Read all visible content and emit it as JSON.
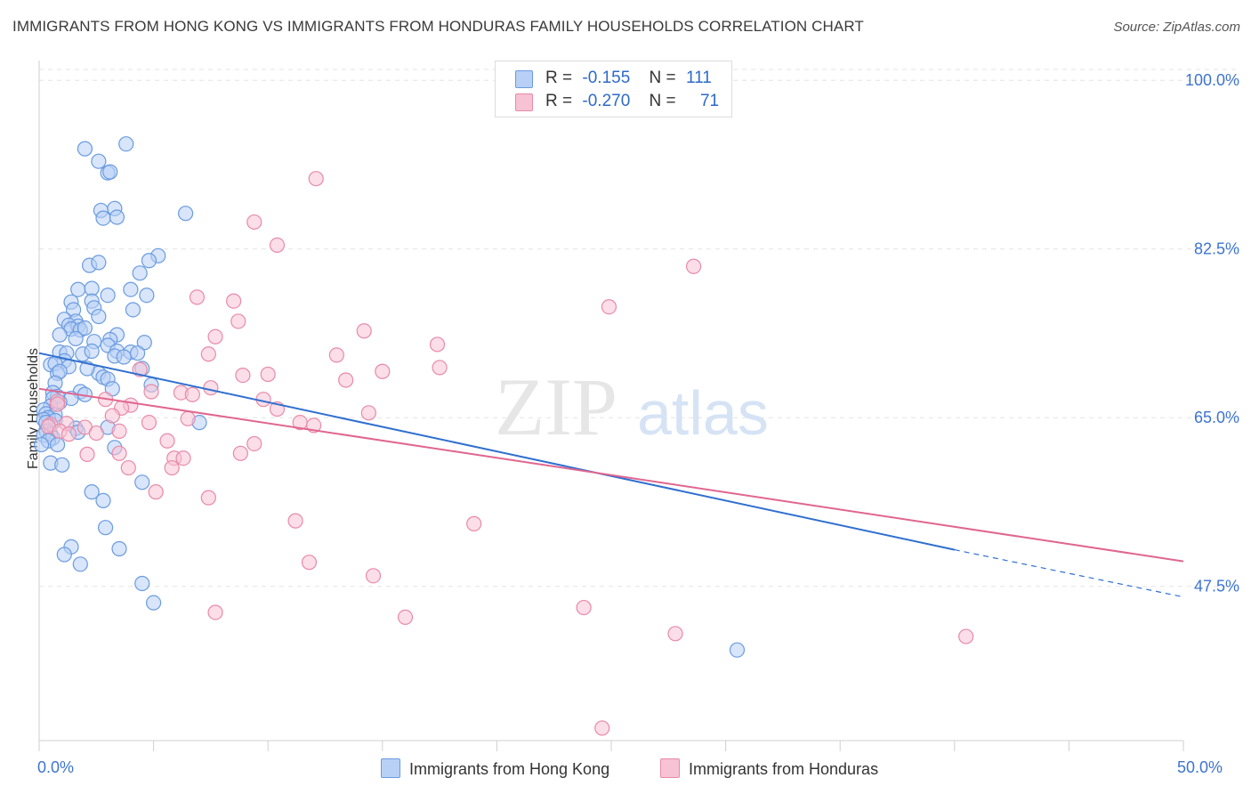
{
  "title": "IMMIGRANTS FROM HONG KONG VS IMMIGRANTS FROM HONDURAS FAMILY HOUSEHOLDS CORRELATION CHART",
  "source": "Source: ZipAtlas.com",
  "watermark": {
    "zip": "ZIP",
    "atlas": "atlas"
  },
  "legend": {
    "rows": [
      {
        "r_label": "R =",
        "r_value": "-0.155",
        "n_label": "N =",
        "n_value": "111"
      },
      {
        "r_label": "R =",
        "r_value": "-0.270",
        "n_label": "N =",
        "n_value": "71"
      }
    ]
  },
  "colors": {
    "blue_fill": "#b8d0f5",
    "blue_stroke": "#6a9be0",
    "blue_line": "#2f6fd0",
    "pink_fill": "#f7c2d3",
    "pink_stroke": "#e88aa8",
    "pink_line": "#e0668f",
    "axis_text": "#3d74cf",
    "grid": "#e3e3e3"
  },
  "chart_data": {
    "type": "scatter",
    "title": "IMMIGRANTS FROM HONG KONG VS IMMIGRANTS FROM HONDURAS FAMILY HOUSEHOLDS CORRELATION CHART",
    "xlabel": "",
    "ylabel": "Family Households",
    "xlim": [
      0,
      50
    ],
    "ylim": [
      31.5,
      101.5
    ],
    "x_tick_labels": [
      "0.0%",
      "50.0%"
    ],
    "y_ticks": [
      100.0,
      82.5,
      65.0,
      47.5
    ],
    "y_tick_labels": [
      "100.0%",
      "82.5%",
      "65.0%",
      "47.5%"
    ],
    "grid": "horizontal dashed",
    "legend_position": "top-center",
    "series": [
      {
        "name": "Immigrants from Hong Kong",
        "color": "#6a9be0",
        "trend": {
          "x": [
            0,
            40,
            50
          ],
          "y": [
            71.7,
            51.3,
            46.4
          ],
          "solid_until": 40
        },
        "points": [
          [
            2.0,
            92.9
          ],
          [
            3.8,
            93.4
          ],
          [
            2.6,
            91.6
          ],
          [
            3.0,
            90.4
          ],
          [
            3.1,
            90.5
          ],
          [
            2.7,
            86.5
          ],
          [
            3.3,
            86.7
          ],
          [
            2.8,
            85.7
          ],
          [
            3.4,
            85.8
          ],
          [
            6.4,
            86.2
          ],
          [
            5.2,
            81.8
          ],
          [
            4.8,
            81.3
          ],
          [
            2.2,
            80.8
          ],
          [
            2.6,
            81.1
          ],
          [
            4.4,
            80.0
          ],
          [
            1.7,
            78.3
          ],
          [
            2.3,
            78.4
          ],
          [
            4.0,
            78.3
          ],
          [
            4.7,
            77.7
          ],
          [
            3.0,
            77.7
          ],
          [
            1.4,
            77.0
          ],
          [
            2.3,
            77.1
          ],
          [
            1.5,
            76.2
          ],
          [
            2.4,
            76.4
          ],
          [
            4.1,
            76.2
          ],
          [
            2.6,
            75.5
          ],
          [
            1.1,
            75.2
          ],
          [
            1.6,
            75.0
          ],
          [
            1.3,
            74.6
          ],
          [
            1.7,
            74.5
          ],
          [
            1.4,
            74.2
          ],
          [
            1.8,
            74.1
          ],
          [
            2.0,
            74.3
          ],
          [
            0.9,
            73.6
          ],
          [
            1.6,
            73.2
          ],
          [
            3.4,
            73.6
          ],
          [
            2.4,
            72.9
          ],
          [
            3.1,
            73.1
          ],
          [
            4.6,
            72.8
          ],
          [
            3.0,
            72.5
          ],
          [
            0.9,
            71.8
          ],
          [
            1.2,
            71.7
          ],
          [
            1.9,
            71.6
          ],
          [
            2.3,
            71.9
          ],
          [
            3.4,
            71.9
          ],
          [
            4.0,
            71.8
          ],
          [
            4.3,
            71.7
          ],
          [
            3.3,
            71.4
          ],
          [
            3.7,
            71.3
          ],
          [
            1.1,
            70.9
          ],
          [
            0.5,
            70.5
          ],
          [
            0.7,
            70.6
          ],
          [
            1.3,
            70.3
          ],
          [
            2.6,
            69.6
          ],
          [
            2.1,
            70.1
          ],
          [
            4.5,
            70.1
          ],
          [
            0.8,
            69.6
          ],
          [
            0.9,
            69.8
          ],
          [
            2.8,
            69.2
          ],
          [
            3.0,
            69.0
          ],
          [
            0.7,
            68.6
          ],
          [
            4.9,
            68.4
          ],
          [
            3.2,
            68.0
          ],
          [
            0.6,
            67.6
          ],
          [
            1.8,
            67.7
          ],
          [
            2.0,
            67.4
          ],
          [
            0.8,
            67.2
          ],
          [
            0.6,
            67.0
          ],
          [
            1.4,
            67.0
          ],
          [
            0.9,
            66.6
          ],
          [
            0.5,
            66.2
          ],
          [
            0.2,
            65.8
          ],
          [
            0.3,
            65.4
          ],
          [
            0.7,
            65.3
          ],
          [
            0.4,
            65.0
          ],
          [
            0.2,
            64.8
          ],
          [
            0.7,
            64.7
          ],
          [
            0.3,
            64.5
          ],
          [
            7.0,
            64.5
          ],
          [
            3.0,
            64.0
          ],
          [
            1.6,
            63.9
          ],
          [
            0.3,
            63.6
          ],
          [
            0.5,
            63.3
          ],
          [
            1.7,
            63.5
          ],
          [
            0.2,
            63.2
          ],
          [
            0.6,
            62.9
          ],
          [
            0.4,
            62.6
          ],
          [
            0.8,
            62.2
          ],
          [
            0.1,
            62.2
          ],
          [
            3.3,
            61.9
          ],
          [
            0.5,
            60.3
          ],
          [
            1.0,
            60.1
          ],
          [
            4.5,
            58.3
          ],
          [
            2.3,
            57.3
          ],
          [
            2.8,
            56.4
          ],
          [
            2.9,
            53.6
          ],
          [
            1.4,
            51.6
          ],
          [
            3.5,
            51.4
          ],
          [
            1.1,
            50.8
          ],
          [
            1.8,
            49.8
          ],
          [
            4.5,
            47.8
          ],
          [
            5.0,
            45.8
          ],
          [
            30.5,
            40.9
          ]
        ]
      },
      {
        "name": "Immigrants from Honduras",
        "color": "#e88aa8",
        "trend": {
          "x": [
            0,
            50
          ],
          "y": [
            68.0,
            50.1
          ]
        },
        "points": [
          [
            12.1,
            89.8
          ],
          [
            9.4,
            85.3
          ],
          [
            10.4,
            82.9
          ],
          [
            28.6,
            80.7
          ],
          [
            6.9,
            77.5
          ],
          [
            8.5,
            77.1
          ],
          [
            24.9,
            76.5
          ],
          [
            8.7,
            75.0
          ],
          [
            14.2,
            74.0
          ],
          [
            7.7,
            73.4
          ],
          [
            17.4,
            72.6
          ],
          [
            7.4,
            71.6
          ],
          [
            13.0,
            71.5
          ],
          [
            17.5,
            70.2
          ],
          [
            15.0,
            69.8
          ],
          [
            8.9,
            69.4
          ],
          [
            10.0,
            69.5
          ],
          [
            4.4,
            70.0
          ],
          [
            13.4,
            68.9
          ],
          [
            7.5,
            68.1
          ],
          [
            4.9,
            67.7
          ],
          [
            6.2,
            67.6
          ],
          [
            6.7,
            67.4
          ],
          [
            9.8,
            66.9
          ],
          [
            2.9,
            66.9
          ],
          [
            0.8,
            66.7
          ],
          [
            0.8,
            66.4
          ],
          [
            4.0,
            66.3
          ],
          [
            3.6,
            66.0
          ],
          [
            10.4,
            65.9
          ],
          [
            14.4,
            65.5
          ],
          [
            3.2,
            65.2
          ],
          [
            6.5,
            64.9
          ],
          [
            11.4,
            64.5
          ],
          [
            4.8,
            64.5
          ],
          [
            1.2,
            64.4
          ],
          [
            0.5,
            64.3
          ],
          [
            12.0,
            64.2
          ],
          [
            0.4,
            64.1
          ],
          [
            2.0,
            64.0
          ],
          [
            0.9,
            63.6
          ],
          [
            3.5,
            63.6
          ],
          [
            1.3,
            63.3
          ],
          [
            2.5,
            63.4
          ],
          [
            5.6,
            62.6
          ],
          [
            9.4,
            62.3
          ],
          [
            2.1,
            61.2
          ],
          [
            3.5,
            61.3
          ],
          [
            5.9,
            60.8
          ],
          [
            8.8,
            61.3
          ],
          [
            6.3,
            60.8
          ],
          [
            3.9,
            59.8
          ],
          [
            5.8,
            59.8
          ],
          [
            5.1,
            57.3
          ],
          [
            7.4,
            56.7
          ],
          [
            11.2,
            54.3
          ],
          [
            19.0,
            54.0
          ],
          [
            11.8,
            50.0
          ],
          [
            14.6,
            48.6
          ],
          [
            7.7,
            44.8
          ],
          [
            16.0,
            44.3
          ],
          [
            23.8,
            45.3
          ],
          [
            27.8,
            42.6
          ],
          [
            40.5,
            42.3
          ],
          [
            24.6,
            32.8
          ]
        ]
      }
    ]
  }
}
